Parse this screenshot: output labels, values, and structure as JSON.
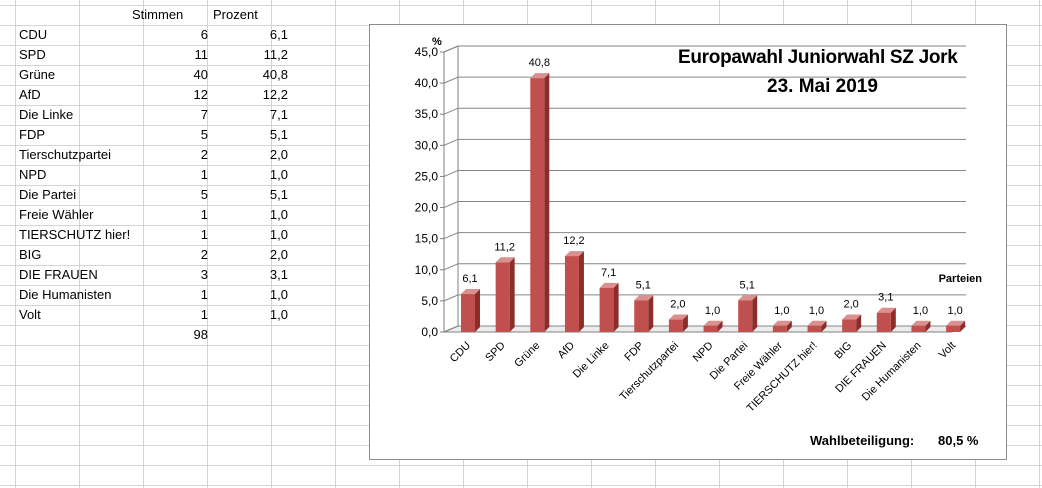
{
  "table": {
    "col_stimmen": "Stimmen",
    "col_prozent": "Prozent",
    "rows": [
      {
        "partei": "CDU",
        "stimmen": "6",
        "prozent": "6,1"
      },
      {
        "partei": "SPD",
        "stimmen": "11",
        "prozent": "11,2"
      },
      {
        "partei": "Grüne",
        "stimmen": "40",
        "prozent": "40,8"
      },
      {
        "partei": "AfD",
        "stimmen": "12",
        "prozent": "12,2"
      },
      {
        "partei": "Die Linke",
        "stimmen": "7",
        "prozent": "7,1"
      },
      {
        "partei": "FDP",
        "stimmen": "5",
        "prozent": "5,1"
      },
      {
        "partei": "Tierschutzpartei",
        "stimmen": "2",
        "prozent": "2,0"
      },
      {
        "partei": "NPD",
        "stimmen": "1",
        "prozent": "1,0"
      },
      {
        "partei": "Die Partei",
        "stimmen": "5",
        "prozent": "5,1"
      },
      {
        "partei": "Freie Wähler",
        "stimmen": "1",
        "prozent": "1,0"
      },
      {
        "partei": "TIERSCHUTZ hier!",
        "stimmen": "1",
        "prozent": "1,0"
      },
      {
        "partei": "BIG",
        "stimmen": "2",
        "prozent": "2,0"
      },
      {
        "partei": "DIE FRAUEN",
        "stimmen": "3",
        "prozent": "3,1"
      },
      {
        "partei": "Die Humanisten",
        "stimmen": "1",
        "prozent": "1,0"
      },
      {
        "partei": "Volt",
        "stimmen": "1",
        "prozent": "1,0"
      }
    ],
    "total_stimmen": "98"
  },
  "chart_data": {
    "type": "bar",
    "title_line1": "Europawahl Juniorwahl SZ Jork",
    "title_line2": "23. Mai 2019",
    "ylabel": "%",
    "xlabel": "Parteien",
    "categories": [
      "CDU",
      "SPD",
      "Grüne",
      "AfD",
      "Die Linke",
      "FDP",
      "Tierschutzpartei",
      "NPD",
      "Die Partei",
      "Freie Wähler",
      "TIERSCHUTZ hier!",
      "BIG",
      "DIE FRAUEN",
      "Die Humanisten",
      "Volt"
    ],
    "values": [
      6.1,
      11.2,
      40.8,
      12.2,
      7.1,
      5.1,
      2.0,
      1.0,
      5.1,
      1.0,
      1.0,
      2.0,
      3.1,
      1.0,
      1.0
    ],
    "value_labels": [
      "6,1",
      "11,2",
      "40,8",
      "12,2",
      "7,1",
      "5,1",
      "2,0",
      "1,0",
      "5,1",
      "1,0",
      "1,0",
      "2,0",
      "3,1",
      "1,0",
      "1,0"
    ],
    "ylim": [
      0,
      45
    ],
    "yticks": [
      0,
      5,
      10,
      15,
      20,
      25,
      30,
      35,
      40,
      45
    ],
    "ytick_labels": [
      "0,0",
      "5,0",
      "10,0",
      "15,0",
      "20,0",
      "25,0",
      "30,0",
      "35,0",
      "40,0",
      "45,0"
    ],
    "grid": true,
    "bar_color": "#c0504d",
    "bar_side_color": "#8c2d2a",
    "bar_top_color": "#d9908e",
    "turnout_label": "Wahlbeteiligung:",
    "turnout_value": "80,5 %"
  }
}
